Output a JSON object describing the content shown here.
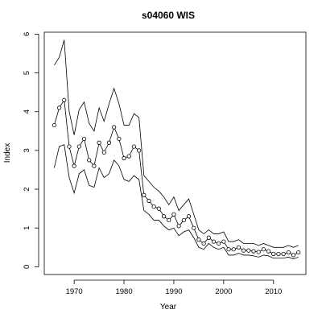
{
  "chart_data": {
    "type": "line",
    "title": "s04060 WIS",
    "xlabel": "Year",
    "ylabel": "Index",
    "xlim": [
      1964,
      2016.5
    ],
    "ylim": [
      -0.2,
      6.05
    ],
    "xticks": [
      1970,
      1980,
      1990,
      2000,
      2010
    ],
    "yticks": [
      0,
      1,
      2,
      3,
      4,
      5,
      6
    ],
    "grid": false,
    "legend": "none",
    "x": [
      1966,
      1967,
      1968,
      1969,
      1970,
      1971,
      1972,
      1973,
      1974,
      1975,
      1976,
      1977,
      1978,
      1979,
      1980,
      1981,
      1982,
      1983,
      1984,
      1985,
      1986,
      1987,
      1988,
      1989,
      1990,
      1991,
      1992,
      1993,
      1994,
      1995,
      1996,
      1997,
      1998,
      1999,
      2000,
      2001,
      2002,
      2003,
      2004,
      2005,
      2006,
      2007,
      2008,
      2009,
      2010,
      2011,
      2012,
      2013,
      2014,
      2015
    ],
    "series": [
      {
        "role": "upper",
        "markers": false,
        "values": [
          5.2,
          5.4,
          5.85,
          4.0,
          3.4,
          4.05,
          4.25,
          3.7,
          3.5,
          4.1,
          3.75,
          4.2,
          4.6,
          4.2,
          3.65,
          3.65,
          3.95,
          3.85,
          2.35,
          2.2,
          2.05,
          1.95,
          1.8,
          1.6,
          1.8,
          1.45,
          1.6,
          1.75,
          1.35,
          0.95,
          0.85,
          0.95,
          0.85,
          0.85,
          0.9,
          0.65,
          0.65,
          0.7,
          0.6,
          0.6,
          0.6,
          0.55,
          0.6,
          0.55,
          0.5,
          0.5,
          0.5,
          0.55,
          0.5,
          0.55
        ]
      },
      {
        "role": "estimate",
        "markers": true,
        "values": [
          3.65,
          4.1,
          4.3,
          3.1,
          2.6,
          3.1,
          3.3,
          2.75,
          2.6,
          3.2,
          2.95,
          3.2,
          3.6,
          3.3,
          2.8,
          2.85,
          3.1,
          3.0,
          1.85,
          1.7,
          1.55,
          1.5,
          1.3,
          1.2,
          1.35,
          1.05,
          1.2,
          1.3,
          1.0,
          0.7,
          0.6,
          0.75,
          0.65,
          0.6,
          0.65,
          0.45,
          0.45,
          0.5,
          0.42,
          0.42,
          0.4,
          0.38,
          0.45,
          0.4,
          0.33,
          0.33,
          0.33,
          0.37,
          0.3,
          0.37
        ]
      },
      {
        "role": "lower",
        "markers": false,
        "values": [
          2.55,
          3.1,
          3.15,
          2.3,
          1.9,
          2.4,
          2.5,
          2.1,
          2.05,
          2.55,
          2.3,
          2.4,
          2.75,
          2.6,
          2.25,
          2.2,
          2.35,
          2.25,
          1.45,
          1.35,
          1.2,
          1.2,
          1.05,
          0.95,
          1.0,
          0.8,
          0.9,
          0.95,
          0.75,
          0.5,
          0.45,
          0.6,
          0.5,
          0.45,
          0.5,
          0.3,
          0.3,
          0.35,
          0.3,
          0.3,
          0.28,
          0.25,
          0.3,
          0.28,
          0.22,
          0.22,
          0.22,
          0.25,
          0.2,
          0.25
        ]
      }
    ]
  }
}
